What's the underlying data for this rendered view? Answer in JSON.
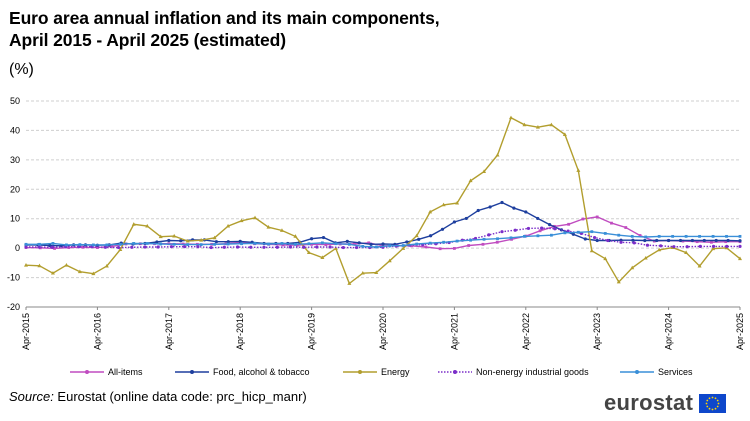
{
  "header": {
    "title_line1": "Euro area annual inflation and its main components,",
    "title_line2": "April 2015 - April 2025 (estimated)",
    "unit": "(%)"
  },
  "footer": {
    "source_label": "Source:",
    "source_text": " Eurostat (online data code: prc_hicp_manr)",
    "logo_text": "eurostat"
  },
  "chart_data": {
    "type": "line",
    "title": "Euro area annual inflation and its main components, April 2015 - April 2025 (estimated)",
    "ylabel": "(%)",
    "xlabel": "",
    "ylim": [
      -20,
      50
    ],
    "yticks": [
      -20,
      -10,
      0,
      10,
      20,
      30,
      40,
      50
    ],
    "x_start": "Apr-2015",
    "x_end": "Apr-2025",
    "x_step": "quarterly",
    "x_tick_labels": [
      "Apr-2015",
      "Apr-2016",
      "Apr-2017",
      "Apr-2018",
      "Apr-2019",
      "Apr-2020",
      "Apr-2021",
      "Apr-2022",
      "Apr-2023",
      "Apr-2024",
      "Apr-2025"
    ],
    "grid": true,
    "legend_position": "bottom",
    "series": [
      {
        "name": "All-items",
        "color": "#c04cc0",
        "values": [
          0.2,
          0.1,
          -0.1,
          0.2,
          0.3,
          0.2,
          0.6,
          1.4,
          1.5,
          1.5,
          1.5,
          1.4,
          1.3,
          1.3,
          1.5,
          2.0,
          1.5,
          1.3,
          1.1,
          1.0,
          1.3,
          1.2,
          1.4,
          1.4,
          1.8,
          0.8,
          0.8,
          0.8,
          0.4,
          -0.2,
          -0.1,
          0.9,
          1.3,
          2.0,
          3.0,
          4.1,
          5.9,
          7.4,
          8.1,
          9.9,
          10.6,
          8.5,
          7.0,
          4.3,
          2.4,
          2.6,
          2.4,
          2.2,
          2.0,
          2.2,
          2.2
        ]
      },
      {
        "name": "Food, alcohol & tobacco",
        "color": "#1e3f9e",
        "values": [
          1.1,
          1.1,
          0.9,
          0.8,
          1.1,
          1.1,
          1.0,
          1.1,
          1.7,
          1.4,
          1.6,
          2.1,
          2.6,
          2.5,
          2.8,
          2.8,
          2.2,
          2.2,
          2.3,
          2.0,
          1.6,
          1.6,
          1.6,
          2.0,
          3.2,
          3.6,
          1.8,
          2.3,
          1.8,
          1.3,
          1.4,
          1.3,
          2.1,
          3.0,
          4.2,
          6.4,
          8.9,
          10.1,
          12.8,
          14.0,
          15.5,
          13.6,
          12.3,
          10.1,
          8.0,
          6.2,
          4.7,
          3.1,
          2.6,
          2.6,
          2.7,
          2.7,
          2.6,
          2.6,
          2.6,
          2.6,
          2.6,
          2.6,
          2.6,
          2.6,
          2.5
        ]
      },
      {
        "name": "Energy",
        "color": "#b29e2e",
        "values": [
          -5.8,
          -6.0,
          -8.5,
          -5.8,
          -8.0,
          -8.7,
          -6.1,
          -0.5,
          8.1,
          7.5,
          3.9,
          4.1,
          2.4,
          2.7,
          3.5,
          7.5,
          9.3,
          10.3,
          7.1,
          6.0,
          4.0,
          -1.5,
          -3.2,
          -0.1,
          -12.0,
          -8.5,
          -8.3,
          -4.3,
          -0.1,
          4.2,
          12.3,
          14.7,
          15.3,
          22.9,
          26.0,
          31.6,
          44.3,
          41.9,
          41.1,
          41.9,
          38.6,
          26.4,
          -0.9,
          -3.6,
          -11.5,
          -6.7,
          -3.4,
          -0.6,
          0.2,
          -1.5,
          -6.1,
          -0.2,
          0.1,
          -3.6
        ]
      },
      {
        "name": "Non-energy industrial goods",
        "color": "#7b2ec8",
        "values": [
          0.4,
          0.4,
          0.3,
          0.5,
          0.5,
          0.5,
          0.3,
          0.2,
          0.3,
          0.4,
          0.4,
          0.5,
          0.5,
          0.5,
          0.2,
          0.3,
          0.4,
          0.3,
          0.3,
          0.3,
          0.4,
          0.3,
          0.4,
          0.4,
          0.2,
          0.2,
          0.2,
          0.3,
          0.7,
          1.0,
          1.2,
          1.5,
          1.9,
          2.7,
          3.3,
          4.5,
          5.6,
          6.1,
          6.7,
          6.8,
          6.6,
          5.8,
          5.0,
          3.6,
          2.6,
          2.0,
          1.8,
          1.0,
          0.8,
          0.5,
          0.5,
          0.6,
          0.6,
          0.6,
          0.6
        ]
      },
      {
        "name": "Services",
        "color": "#3a8fd8",
        "values": [
          1.3,
          1.3,
          1.6,
          1.1,
          1.2,
          1.1,
          1.1,
          1.3,
          1.6,
          1.6,
          1.4,
          1.3,
          1.2,
          1.2,
          1.3,
          1.4,
          1.5,
          1.6,
          1.4,
          1.6,
          1.3,
          1.5,
          1.8,
          1.5,
          1.3,
          0.6,
          0.4,
          0.8,
          0.9,
          1.4,
          1.7,
          2.0,
          2.4,
          2.7,
          3.0,
          3.2,
          3.5,
          4.0,
          4.2,
          4.4,
          5.2,
          5.4,
          5.6,
          5.0,
          4.4,
          4.0,
          3.8,
          4.0,
          4.0,
          4.0,
          4.0,
          4.0,
          4.0,
          4.0
        ]
      }
    ]
  }
}
